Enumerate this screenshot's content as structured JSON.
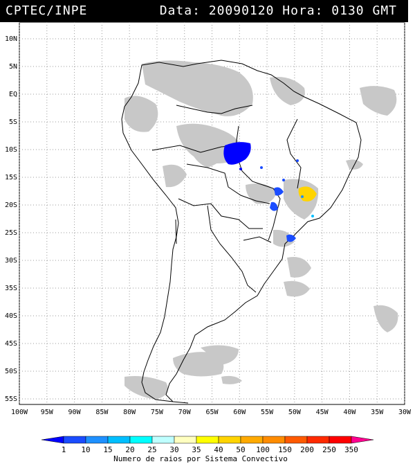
{
  "header": {
    "source": "CPTEC/INPE",
    "datetime": "Data: 20090120 Hora: 0130 GMT"
  },
  "map": {
    "lat_labels": [
      "10N",
      "5N",
      "EQ",
      "5S",
      "10S",
      "15S",
      "20S",
      "25S",
      "30S",
      "35S",
      "40S",
      "45S",
      "50S",
      "55S"
    ],
    "lon_labels": [
      "100W",
      "95W",
      "90W",
      "85W",
      "80W",
      "75W",
      "70W",
      "65W",
      "60W",
      "55W",
      "50W",
      "45W",
      "40W",
      "35W",
      "30W"
    ],
    "lon_range": [
      -100,
      -30
    ],
    "lat_range": [
      -56,
      13
    ],
    "grid": "dotted",
    "colors": {
      "cloud": "#c8c8c8",
      "coast": "#000000"
    }
  },
  "colorbar": {
    "labels": [
      "1",
      "10",
      "15",
      "20",
      "25",
      "30",
      "35",
      "40",
      "50",
      "100",
      "150",
      "200",
      "250",
      "350"
    ],
    "colors": [
      "#0000ff",
      "#1a4cff",
      "#1e90ff",
      "#00bfff",
      "#00ffff",
      "#bfffff",
      "#ffffc0",
      "#ffff00",
      "#ffd400",
      "#ffaa00",
      "#ff8c00",
      "#ff5a00",
      "#ff2a00",
      "#ff0000",
      "#ff0090"
    ],
    "caption": "Numero de raios por Sistema Convectivo"
  }
}
